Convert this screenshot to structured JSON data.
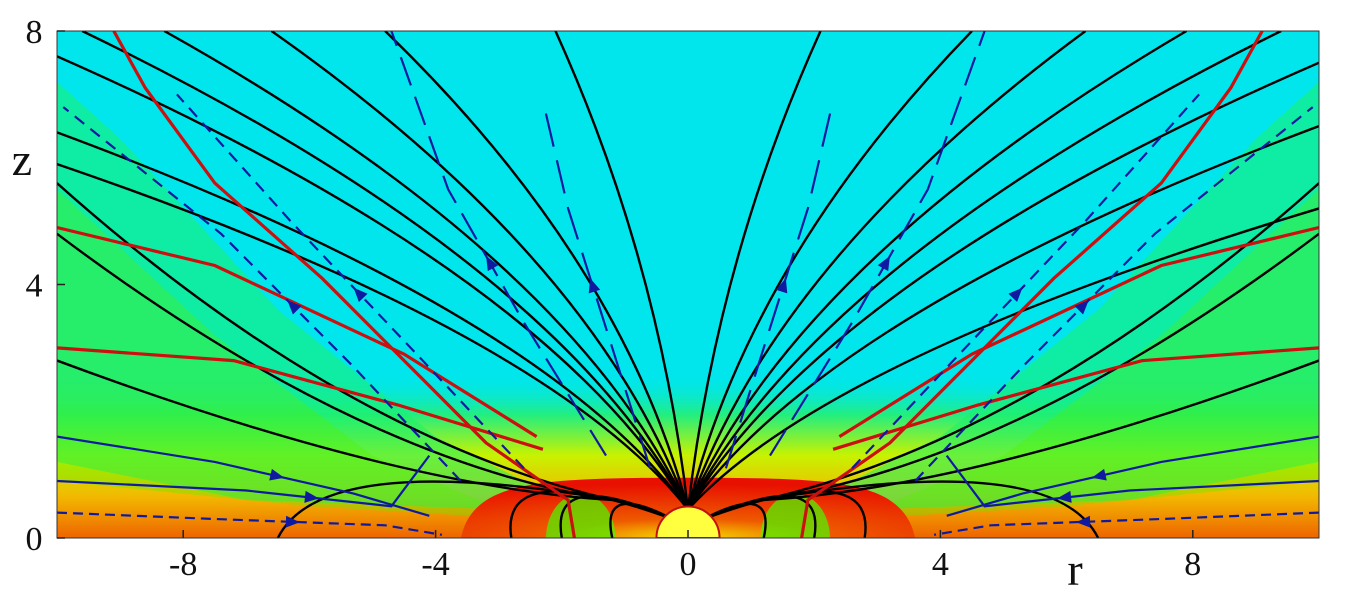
{
  "chart_data": {
    "type": "heatmap",
    "title": "",
    "xlabel": "r",
    "ylabel": "z",
    "xlim": [
      -10,
      10
    ],
    "ylim": [
      0,
      8
    ],
    "x_ticks": [
      -8,
      -4,
      0,
      4,
      8
    ],
    "y_ticks": [
      0,
      4,
      8
    ],
    "x_tick_labels": [
      "-8",
      "-4",
      "0",
      "4",
      "8"
    ],
    "y_tick_labels": [
      "0",
      "4",
      "8"
    ],
    "grid": false,
    "legend": "none",
    "background_colormap": [
      "#00e6ec",
      "#1bf06a",
      "#53f000",
      "#d7f400",
      "#f2c300",
      "#f06a00",
      "#e81000"
    ],
    "central_body": {
      "r_center": 0,
      "z_center": 0,
      "radius": 0.5,
      "color": "#ffff40"
    },
    "series": [
      {
        "kind": "field_lines",
        "color": "#000000"
      },
      {
        "kind": "boundary_contour",
        "color": "#cc1010"
      },
      {
        "kind": "streamlines",
        "color": "#101aa0",
        "arrow_direction": "outward"
      }
    ]
  }
}
